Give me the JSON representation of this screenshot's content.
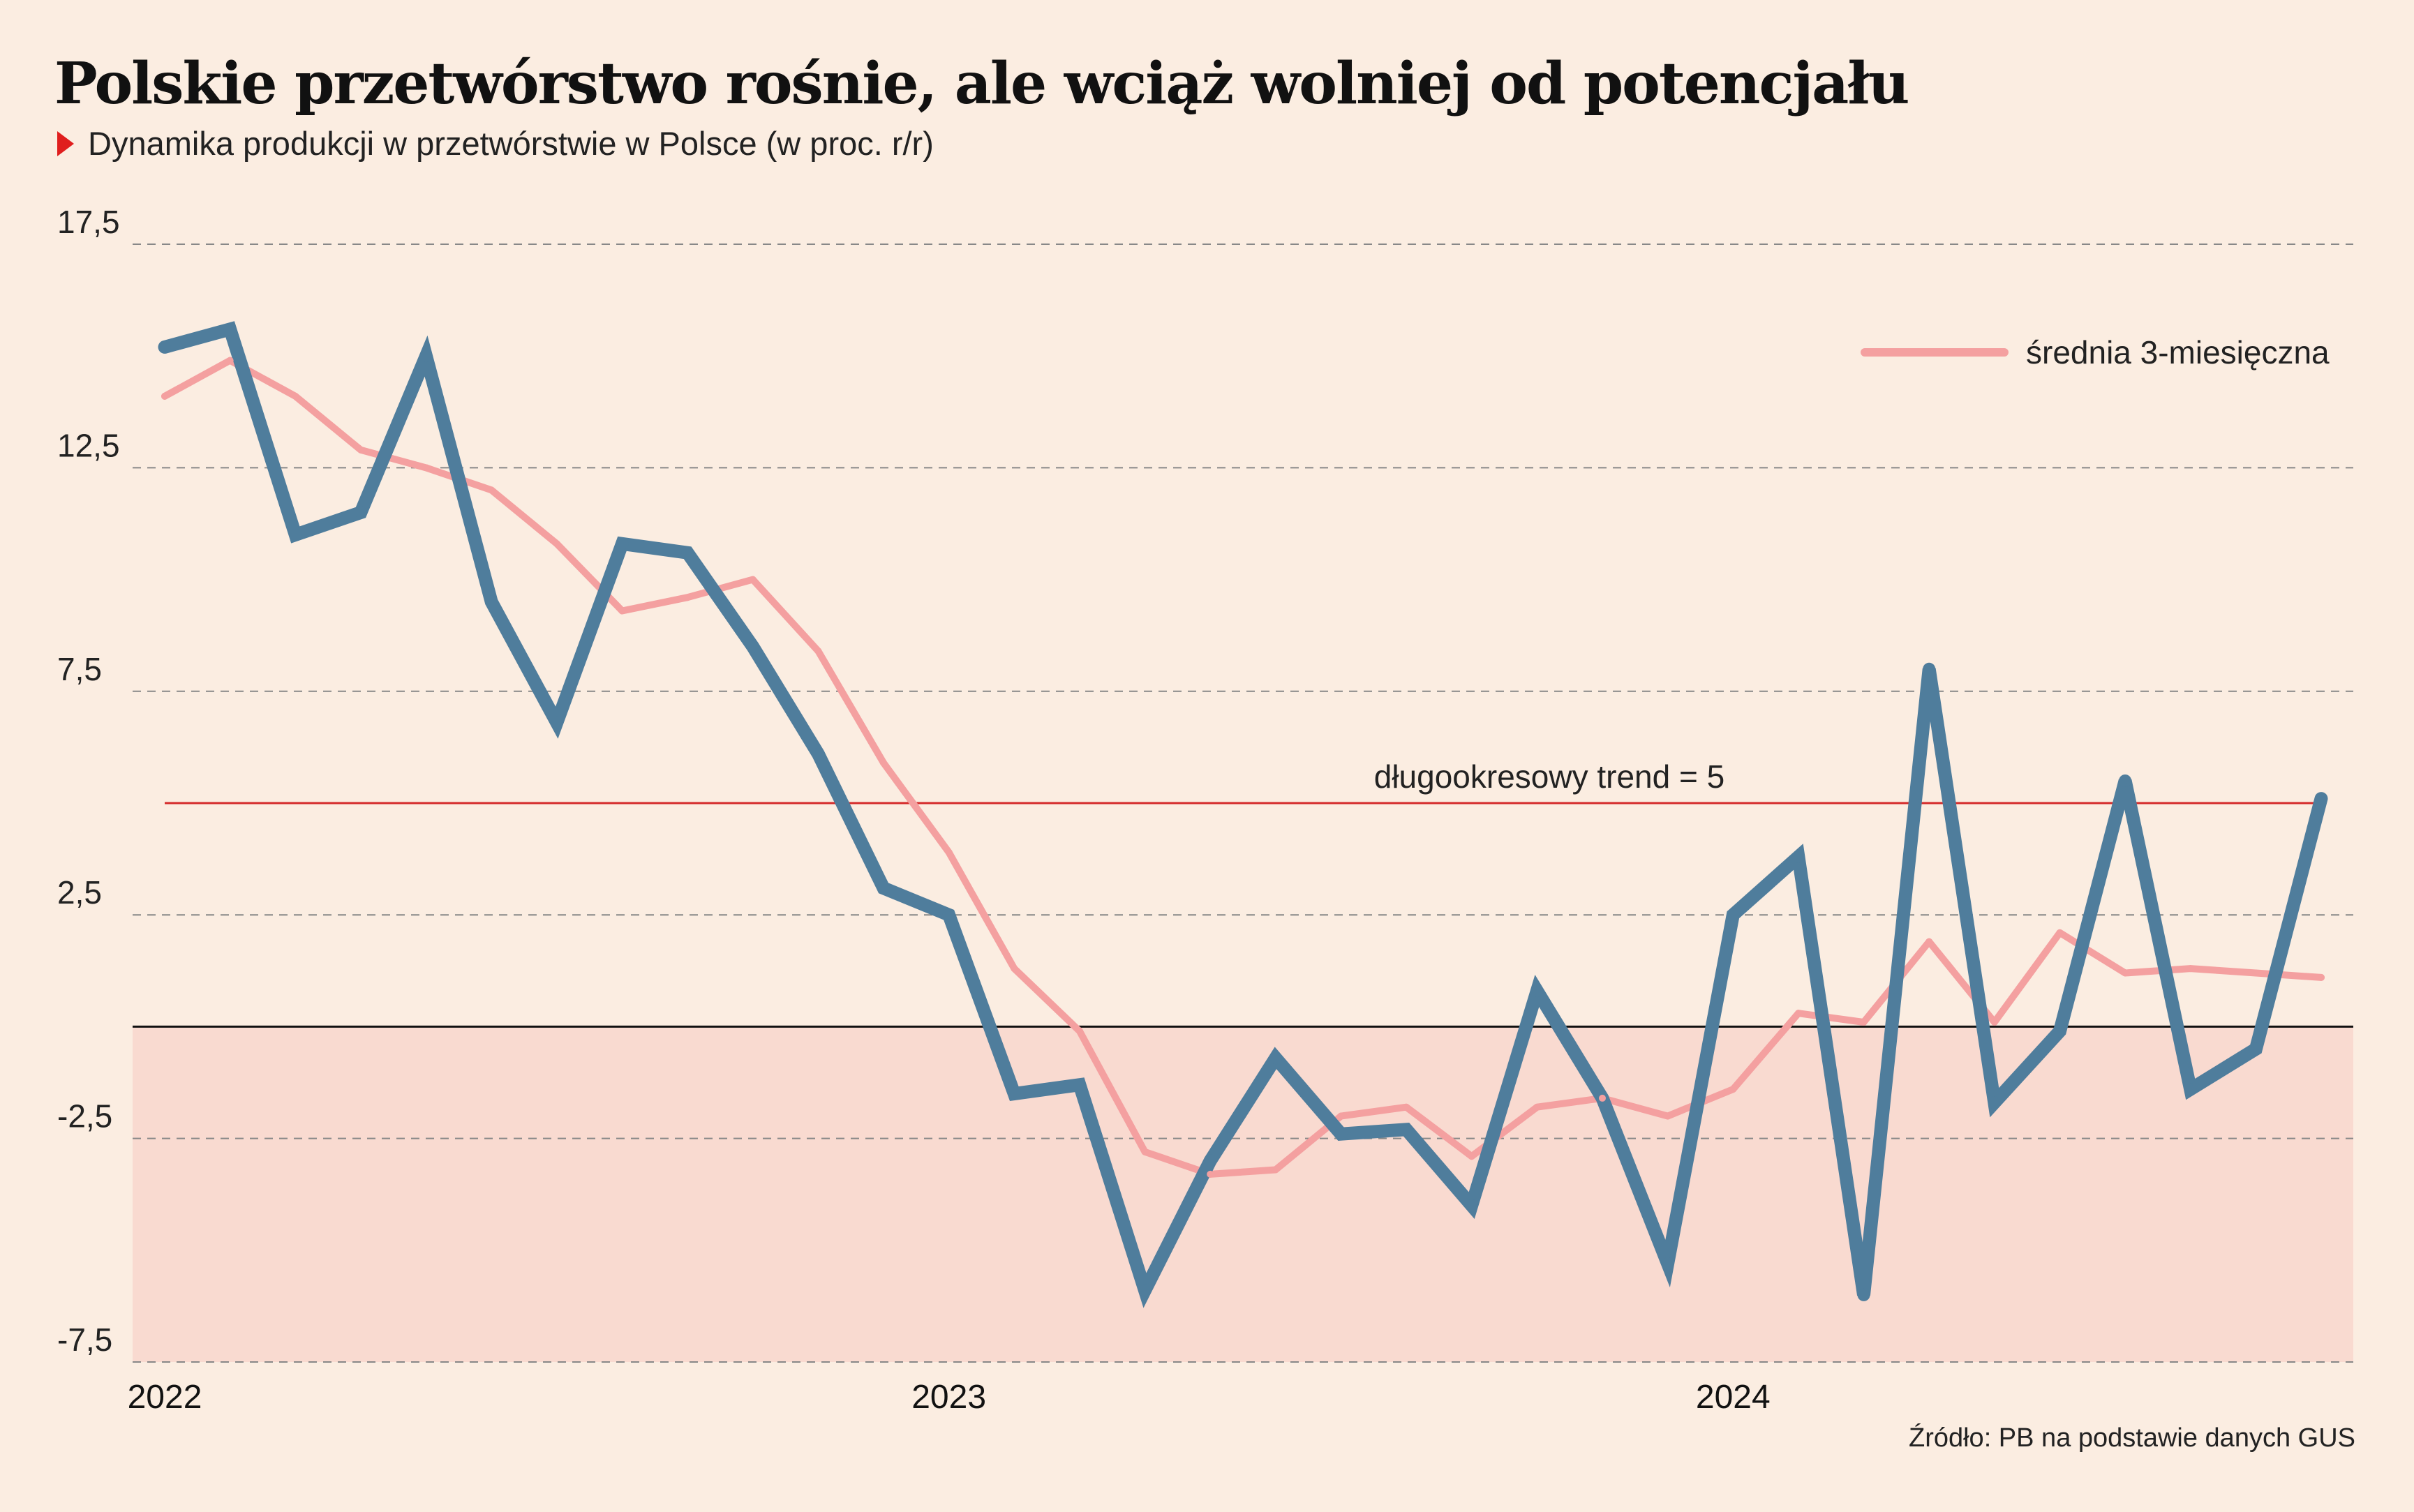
{
  "title": "Polskie przetwórstwo rośnie, ale wciąż wolniej od potencjału",
  "subtitle": "Dynamika produkcji w przetwórstwie w Polsce (w proc. r/r)",
  "source": "Źródło: PB na podstawie danych GUS",
  "colors": {
    "background": "#fbede1",
    "negative_zone": "#f9dad0",
    "main_series": "#4f7d9c",
    "average_series": "#f4a0a0",
    "trend_line": "#d42a2a",
    "zero_line": "#111111",
    "grid": "#888888"
  },
  "chart_data": {
    "type": "line",
    "title": "Polskie przetwórstwo rośnie, ale wciąż wolniej od potencjału",
    "ylim": [
      -7.5,
      17.5
    ],
    "yticks": [
      17.5,
      12.5,
      7.5,
      2.5,
      -2.5,
      -7.5
    ],
    "ytick_labels": [
      "17,5",
      "12,5",
      "7,5",
      "2,5",
      "-2,5",
      "-7,5"
    ],
    "xlim": [
      "2022-01",
      "2024-10"
    ],
    "x_tick_labels": [
      "2022",
      "2023",
      "2024"
    ],
    "x_tick_positions": [
      "2022-01",
      "2023-01",
      "2024-01"
    ],
    "grid": "horizontal dashed",
    "legend": {
      "placement": "top-right",
      "entries": [
        "średnia 3-miesięczna"
      ]
    },
    "x": [
      "2022-01",
      "2022-02",
      "2022-03",
      "2022-04",
      "2022-05",
      "2022-06",
      "2022-07",
      "2022-08",
      "2022-09",
      "2022-10",
      "2022-11",
      "2022-12",
      "2023-01",
      "2023-02",
      "2023-03",
      "2023-04",
      "2023-05",
      "2023-06",
      "2023-07",
      "2023-08",
      "2023-09",
      "2023-10",
      "2023-11",
      "2023-12",
      "2024-01",
      "2024-02",
      "2024-03",
      "2024-04",
      "2024-05",
      "2024-06",
      "2024-07",
      "2024-08",
      "2024-09",
      "2024-10"
    ],
    "series": [
      {
        "values": [
          15.2,
          15.6,
          11.0,
          11.5,
          15.0,
          9.5,
          6.8,
          10.8,
          10.6,
          8.5,
          6.1,
          3.1,
          2.5,
          -1.5,
          -1.3,
          -5.9,
          -3.0,
          -0.7,
          -2.4,
          -2.3,
          -4.0,
          0.8,
          -1.6,
          -5.3,
          2.5,
          3.8,
          -6.0,
          8.0,
          -1.7,
          -0.1,
          5.5,
          -1.4,
          -0.5,
          5.1
        ]
      },
      {
        "name": "średnia 3-miesięczna",
        "values": [
          14.1,
          14.9,
          14.1,
          12.9,
          12.5,
          12.0,
          10.8,
          9.3,
          9.6,
          10.0,
          8.4,
          5.9,
          3.9,
          1.3,
          -0.1,
          -2.8,
          -3.3,
          -3.2,
          -2.0,
          -1.8,
          -2.9,
          -1.8,
          -1.6,
          -2.0,
          -1.4,
          0.3,
          0.1,
          1.9,
          0.1,
          2.1,
          1.2,
          1.3,
          1.2,
          1.1
        ]
      }
    ],
    "annotations": [
      {
        "type": "hline",
        "y": 5,
        "text": "długookresowy trend = 5"
      },
      {
        "type": "hline",
        "y": 0
      },
      {
        "type": "shaded_region",
        "y_from": -7.5,
        "y_to": 0
      }
    ]
  }
}
